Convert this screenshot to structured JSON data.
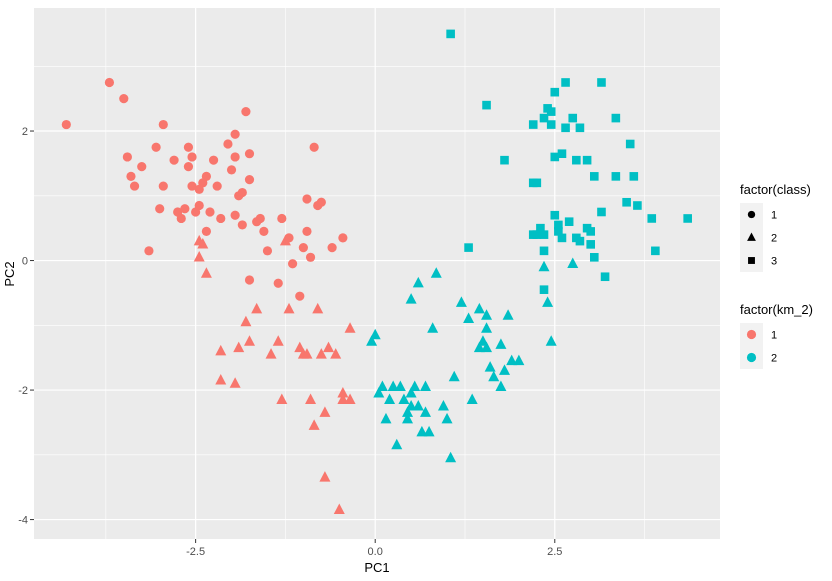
{
  "chart_data": {
    "type": "scatter",
    "title": "",
    "xlabel": "PC1",
    "ylabel": "PC2",
    "xlim": [
      -4.75,
      4.8
    ],
    "ylim": [
      -4.3,
      3.9
    ],
    "x_ticks": [
      -2.5,
      0.0,
      2.5
    ],
    "x_tick_labels": [
      "-2.5",
      "0.0",
      "2.5"
    ],
    "y_ticks": [
      -4,
      -2,
      0,
      2
    ],
    "y_tick_labels": [
      "-4",
      "-2",
      "0",
      "2"
    ],
    "grid": true,
    "legend_position": "right",
    "legends": [
      {
        "title": "factor(class)",
        "kind": "shape",
        "entries": [
          {
            "label": "1",
            "shape": "circle"
          },
          {
            "label": "2",
            "shape": "triangle"
          },
          {
            "label": "3",
            "shape": "square"
          }
        ]
      },
      {
        "title": "factor(km_2)",
        "kind": "color",
        "entries": [
          {
            "label": "1",
            "color": "#F8766D"
          },
          {
            "label": "2",
            "color": "#00BFC4"
          }
        ]
      }
    ],
    "colors": {
      "1": "#F8766D",
      "2": "#00BFC4"
    },
    "series": [
      {
        "class": "1",
        "km": "1",
        "points": [
          [
            -4.3,
            2.1
          ],
          [
            -3.7,
            2.75
          ],
          [
            -3.5,
            2.5
          ],
          [
            -3.45,
            1.6
          ],
          [
            -3.4,
            1.3
          ],
          [
            -3.35,
            1.15
          ],
          [
            -3.25,
            1.45
          ],
          [
            -3.15,
            0.15
          ],
          [
            -3.05,
            1.75
          ],
          [
            -3.0,
            0.8
          ],
          [
            -2.95,
            2.1
          ],
          [
            -2.95,
            1.15
          ],
          [
            -2.8,
            1.55
          ],
          [
            -2.75,
            0.75
          ],
          [
            -2.7,
            0.65
          ],
          [
            -2.65,
            0.8
          ],
          [
            -2.6,
            1.75
          ],
          [
            -2.6,
            1.45
          ],
          [
            -2.55,
            1.6
          ],
          [
            -2.55,
            1.15
          ],
          [
            -2.5,
            0.75
          ],
          [
            -2.45,
            1.1
          ],
          [
            -2.45,
            0.85
          ],
          [
            -2.4,
            1.2
          ],
          [
            -2.35,
            1.3
          ],
          [
            -2.35,
            0.45
          ],
          [
            -2.3,
            0.75
          ],
          [
            -2.25,
            1.55
          ],
          [
            -2.2,
            1.15
          ],
          [
            -2.15,
            0.65
          ],
          [
            -2.05,
            1.8
          ],
          [
            -1.95,
            1.95
          ],
          [
            -2.0,
            1.4
          ],
          [
            -1.95,
            1.6
          ],
          [
            -1.9,
            1.0
          ],
          [
            -1.95,
            0.7
          ],
          [
            -1.85,
            1.05
          ],
          [
            -1.85,
            0.55
          ],
          [
            -1.8,
            2.3
          ],
          [
            -1.75,
            1.65
          ],
          [
            -1.75,
            1.25
          ],
          [
            -1.65,
            0.6
          ],
          [
            -1.6,
            0.65
          ],
          [
            -1.55,
            0.45
          ],
          [
            -1.5,
            0.15
          ],
          [
            -1.35,
            -0.35
          ],
          [
            -1.3,
            0.65
          ],
          [
            -1.2,
            0.35
          ],
          [
            -1.15,
            -0.05
          ],
          [
            -1.05,
            -0.55
          ],
          [
            -1.0,
            0.2
          ],
          [
            -0.95,
            0.45
          ],
          [
            -0.95,
            0.95
          ],
          [
            -0.9,
            0.05
          ],
          [
            -0.85,
            1.75
          ],
          [
            -0.8,
            0.85
          ],
          [
            -0.75,
            0.9
          ],
          [
            -0.6,
            0.2
          ],
          [
            -0.45,
            0.35
          ],
          [
            -1.75,
            -0.3
          ]
        ]
      },
      {
        "class": "2",
        "km": "1",
        "points": [
          [
            -2.45,
            0.3
          ],
          [
            -2.45,
            0.05
          ],
          [
            -2.4,
            0.25
          ],
          [
            -2.35,
            -0.2
          ],
          [
            -2.15,
            -1.4
          ],
          [
            -2.15,
            -1.85
          ],
          [
            -1.95,
            -1.9
          ],
          [
            -1.9,
            -1.35
          ],
          [
            -1.8,
            -0.95
          ],
          [
            -1.75,
            -1.25
          ],
          [
            -1.65,
            -0.75
          ],
          [
            -1.45,
            -1.45
          ],
          [
            -1.35,
            -1.25
          ],
          [
            -1.3,
            -2.15
          ],
          [
            -1.2,
            -0.75
          ],
          [
            -1.05,
            -1.35
          ],
          [
            -1.0,
            -1.45
          ],
          [
            -0.95,
            -1.45
          ],
          [
            -0.9,
            -2.15
          ],
          [
            -0.85,
            -2.55
          ],
          [
            -0.8,
            -0.75
          ],
          [
            -0.75,
            -1.45
          ],
          [
            -0.7,
            -2.35
          ],
          [
            -0.65,
            -1.35
          ],
          [
            -0.55,
            -1.45
          ],
          [
            -0.45,
            -2.05
          ],
          [
            -0.45,
            -2.15
          ],
          [
            -0.35,
            -1.05
          ],
          [
            -0.35,
            -2.15
          ],
          [
            -0.5,
            -3.85
          ],
          [
            -0.7,
            -3.35
          ],
          [
            -1.25,
            0.3
          ]
        ]
      },
      {
        "class": "2",
        "km": "2",
        "points": [
          [
            -0.05,
            -1.25
          ],
          [
            0.0,
            -1.15
          ],
          [
            0.05,
            -2.05
          ],
          [
            0.1,
            -1.95
          ],
          [
            0.15,
            -2.45
          ],
          [
            0.2,
            -2.15
          ],
          [
            0.25,
            -1.95
          ],
          [
            0.3,
            -2.85
          ],
          [
            0.35,
            -1.95
          ],
          [
            0.4,
            -2.15
          ],
          [
            0.45,
            -2.35
          ],
          [
            0.45,
            -2.45
          ],
          [
            0.5,
            -2.05
          ],
          [
            0.5,
            -2.25
          ],
          [
            0.5,
            -0.6
          ],
          [
            0.55,
            -1.95
          ],
          [
            0.6,
            -2.25
          ],
          [
            0.6,
            -0.35
          ],
          [
            0.65,
            -2.65
          ],
          [
            0.7,
            -2.35
          ],
          [
            0.7,
            -1.95
          ],
          [
            0.75,
            -2.65
          ],
          [
            0.8,
            -1.05
          ],
          [
            0.85,
            -0.2
          ],
          [
            0.95,
            -2.25
          ],
          [
            1.0,
            -2.45
          ],
          [
            1.05,
            -3.05
          ],
          [
            1.1,
            -1.8
          ],
          [
            1.2,
            -0.65
          ],
          [
            1.3,
            -0.9
          ],
          [
            1.35,
            -2.15
          ],
          [
            1.45,
            -1.35
          ],
          [
            1.5,
            -1.25
          ],
          [
            1.55,
            -1.05
          ],
          [
            1.55,
            -1.35
          ],
          [
            1.6,
            -1.65
          ],
          [
            1.65,
            -1.8
          ],
          [
            1.75,
            -1.3
          ],
          [
            1.8,
            -1.7
          ],
          [
            1.85,
            -0.85
          ],
          [
            1.9,
            -1.55
          ],
          [
            2.0,
            -1.55
          ],
          [
            1.55,
            -0.85
          ],
          [
            2.35,
            -0.1
          ],
          [
            2.45,
            -1.25
          ],
          [
            2.4,
            -0.65
          ],
          [
            2.75,
            -0.05
          ],
          [
            1.75,
            -1.95
          ],
          [
            1.45,
            -0.75
          ]
        ]
      },
      {
        "class": "3",
        "km": "2",
        "points": [
          [
            1.05,
            3.5
          ],
          [
            1.3,
            0.2
          ],
          [
            1.55,
            2.4
          ],
          [
            1.8,
            1.55
          ],
          [
            2.2,
            2.1
          ],
          [
            2.2,
            1.2
          ],
          [
            2.25,
            1.2
          ],
          [
            2.2,
            0.4
          ],
          [
            2.25,
            0.4
          ],
          [
            2.35,
            2.2
          ],
          [
            2.35,
            0.4
          ],
          [
            2.35,
            0.15
          ],
          [
            2.4,
            2.35
          ],
          [
            2.45,
            2.3
          ],
          [
            2.45,
            2.1
          ],
          [
            2.5,
            2.6
          ],
          [
            2.5,
            1.6
          ],
          [
            2.55,
            0.45
          ],
          [
            2.6,
            1.65
          ],
          [
            2.6,
            0.35
          ],
          [
            2.65,
            2.75
          ],
          [
            2.65,
            2.05
          ],
          [
            2.7,
            0.6
          ],
          [
            2.75,
            2.2
          ],
          [
            2.8,
            1.55
          ],
          [
            2.8,
            0.35
          ],
          [
            2.85,
            2.05
          ],
          [
            2.85,
            0.3
          ],
          [
            2.95,
            1.55
          ],
          [
            2.95,
            0.5
          ],
          [
            3.0,
            0.45
          ],
          [
            3.0,
            0.25
          ],
          [
            3.05,
            1.3
          ],
          [
            3.05,
            0.05
          ],
          [
            3.15,
            0.75
          ],
          [
            3.15,
            2.75
          ],
          [
            3.2,
            -0.25
          ],
          [
            3.35,
            2.2
          ],
          [
            3.35,
            1.3
          ],
          [
            3.5,
            0.9
          ],
          [
            3.55,
            1.8
          ],
          [
            3.6,
            1.3
          ],
          [
            3.65,
            0.85
          ],
          [
            3.85,
            0.65
          ],
          [
            3.9,
            0.15
          ],
          [
            4.35,
            0.65
          ],
          [
            2.35,
            -0.45
          ],
          [
            2.5,
            0.7
          ],
          [
            2.55,
            0.55
          ],
          [
            2.3,
            0.5
          ]
        ]
      }
    ]
  }
}
